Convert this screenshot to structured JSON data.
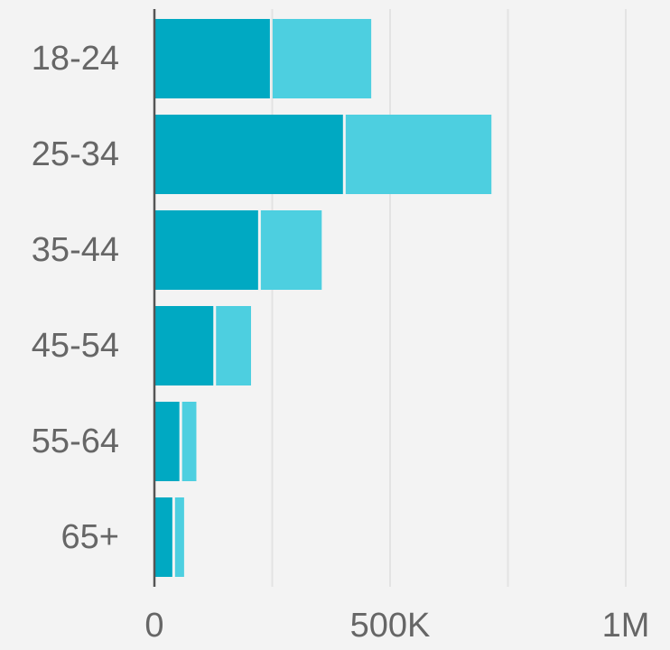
{
  "chart_data": {
    "type": "bar",
    "orientation": "horizontal",
    "stacked": true,
    "categories": [
      "18-24",
      "25-34",
      "35-44",
      "45-54",
      "55-64",
      "65+"
    ],
    "series": [
      {
        "color": "#00a9c2",
        "values": [
          245000,
          400000,
          220000,
          125000,
          53000,
          38000
        ]
      },
      {
        "color": "#4dcfe0",
        "values": [
          215000,
          315000,
          135000,
          80000,
          36000,
          25000
        ]
      }
    ],
    "x_ticks": [
      {
        "value": 0,
        "label": "0"
      },
      {
        "value": 500000,
        "label": "500K"
      },
      {
        "value": 1000000,
        "label": "1M"
      }
    ],
    "xlim": [
      0,
      1000000
    ],
    "grid": true,
    "legend": "none",
    "colors": {
      "background": "#f3f3f3",
      "gridline": "#e3e3e3",
      "axis": "#555555",
      "label": "#666666"
    }
  }
}
